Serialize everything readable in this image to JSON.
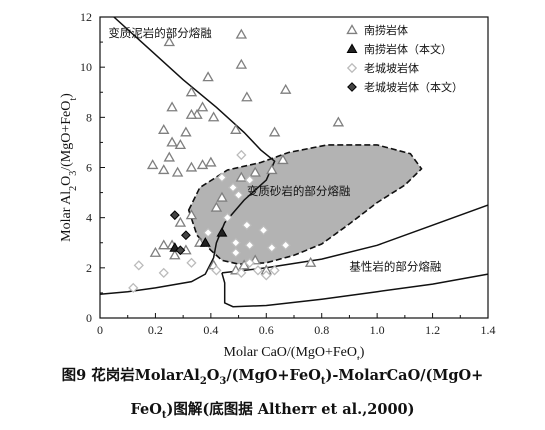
{
  "chart_data": {
    "type": "scatter",
    "xlabel": "Molar CaO/(MgO+FeO_t)",
    "ylabel": "Molar Al_2O_3/(MgO+FeO_t)",
    "xlim": [
      0,
      1.4
    ],
    "ylim": [
      0,
      12
    ],
    "x_ticks": [
      "0",
      "0.2",
      "0.4",
      "0.6",
      "0.8",
      "1.0",
      "1.2",
      "1.4"
    ],
    "y_ticks": [
      "0",
      "2",
      "4",
      "6",
      "8",
      "10",
      "12"
    ],
    "grid": false,
    "legend_position": "top-right",
    "series": [
      {
        "name": "南捞岩体",
        "marker": "triangle-open",
        "color": "#7f7f7f",
        "points": [
          [
            0.25,
            11.0
          ],
          [
            0.51,
            11.3
          ],
          [
            0.51,
            10.1
          ],
          [
            0.39,
            9.6
          ],
          [
            0.33,
            9.0
          ],
          [
            0.67,
            9.1
          ],
          [
            0.53,
            8.8
          ],
          [
            0.26,
            8.4
          ],
          [
            0.37,
            8.4
          ],
          [
            0.35,
            8.1
          ],
          [
            0.33,
            8.1
          ],
          [
            0.41,
            8.0
          ],
          [
            0.23,
            7.5
          ],
          [
            0.31,
            7.4
          ],
          [
            0.49,
            7.5
          ],
          [
            0.63,
            7.4
          ],
          [
            0.86,
            7.8
          ],
          [
            0.26,
            7.0
          ],
          [
            0.29,
            6.9
          ],
          [
            0.25,
            6.4
          ],
          [
            0.19,
            6.1
          ],
          [
            0.37,
            6.1
          ],
          [
            0.4,
            6.2
          ],
          [
            0.33,
            6.0
          ],
          [
            0.28,
            5.8
          ],
          [
            0.23,
            5.9
          ],
          [
            0.66,
            6.3
          ],
          [
            0.62,
            5.9
          ],
          [
            0.51,
            5.6
          ],
          [
            0.56,
            5.8
          ],
          [
            0.44,
            4.8
          ],
          [
            0.42,
            4.4
          ],
          [
            0.33,
            4.1
          ],
          [
            0.29,
            3.8
          ],
          [
            0.36,
            3.0
          ],
          [
            0.31,
            2.7
          ],
          [
            0.26,
            2.9
          ],
          [
            0.23,
            2.9
          ],
          [
            0.2,
            2.6
          ],
          [
            0.27,
            2.5
          ],
          [
            0.41,
            2.1
          ],
          [
            0.49,
            1.9
          ],
          [
            0.52,
            2.1
          ],
          [
            0.56,
            2.3
          ],
          [
            0.6,
            1.9
          ],
          [
            0.76,
            2.2
          ]
        ]
      },
      {
        "name": "南捞岩体（本文）",
        "marker": "triangle-dark",
        "color": "#222222",
        "points": [
          [
            0.27,
            2.8
          ],
          [
            0.38,
            3.0
          ],
          [
            0.44,
            3.4
          ]
        ]
      },
      {
        "name": "老城坡岩体",
        "marker": "diamond-open",
        "color": "#bbbbbb",
        "points": [
          [
            0.51,
            6.5
          ],
          [
            0.44,
            5.6
          ],
          [
            0.48,
            5.2
          ],
          [
            0.5,
            4.9
          ],
          [
            0.54,
            5.5
          ],
          [
            0.46,
            4.0
          ],
          [
            0.53,
            3.7
          ],
          [
            0.59,
            3.5
          ],
          [
            0.49,
            3.0
          ],
          [
            0.54,
            2.9
          ],
          [
            0.62,
            2.8
          ],
          [
            0.67,
            2.9
          ],
          [
            0.49,
            2.6
          ],
          [
            0.54,
            2.2
          ],
          [
            0.57,
            1.9
          ],
          [
            0.63,
            1.9
          ],
          [
            0.6,
            1.7
          ],
          [
            0.51,
            1.8
          ],
          [
            0.42,
            1.9
          ],
          [
            0.33,
            2.2
          ],
          [
            0.23,
            1.8
          ],
          [
            0.14,
            2.1
          ],
          [
            0.12,
            1.2
          ],
          [
            0.39,
            3.4
          ]
        ]
      },
      {
        "name": "老城坡岩体（本文）",
        "marker": "diamond-dark",
        "color": "#444444",
        "points": [
          [
            0.27,
            4.1
          ],
          [
            0.31,
            3.3
          ],
          [
            0.29,
            2.7
          ]
        ]
      }
    ],
    "fields": [
      {
        "name": "变质泥岩的部分熔融",
        "style": "solid",
        "polyline": [
          [
            0.05,
            12.0
          ],
          [
            0.18,
            10.7
          ],
          [
            0.3,
            9.5
          ],
          [
            0.42,
            8.4
          ],
          [
            0.52,
            7.4
          ],
          [
            0.58,
            6.7
          ],
          [
            0.63,
            6.25
          ],
          [
            0.6,
            5.5
          ],
          [
            0.52,
            4.7
          ],
          [
            0.45,
            3.8
          ],
          [
            0.42,
            3.0
          ],
          [
            0.41,
            2.4
          ],
          [
            0.38,
            1.75
          ],
          [
            0.33,
            1.45
          ],
          [
            0.2,
            1.2
          ],
          [
            0.1,
            1.05
          ],
          [
            0.0,
            0.95
          ]
        ]
      },
      {
        "name": "变质砂岩的部分熔融",
        "style": "dashed-filled",
        "fill": "#b3b3b3",
        "polyline": [
          [
            0.32,
            4.3
          ],
          [
            0.36,
            5.2
          ],
          [
            0.46,
            5.9
          ],
          [
            0.58,
            6.2
          ],
          [
            0.68,
            6.6
          ],
          [
            0.82,
            6.9
          ],
          [
            1.0,
            6.9
          ],
          [
            1.12,
            6.55
          ],
          [
            1.16,
            5.95
          ],
          [
            1.1,
            5.3
          ],
          [
            1.0,
            4.6
          ],
          [
            0.9,
            3.75
          ],
          [
            0.8,
            2.95
          ],
          [
            0.7,
            2.5
          ],
          [
            0.6,
            2.2
          ],
          [
            0.5,
            2.15
          ],
          [
            0.44,
            2.3
          ],
          [
            0.4,
            2.7
          ],
          [
            0.35,
            3.3
          ],
          [
            0.32,
            4.3
          ]
        ]
      },
      {
        "name": "基性岩的部分熔融",
        "style": "solid",
        "polyline_upper": [
          [
            0.44,
            1.8
          ],
          [
            0.6,
            2.0
          ],
          [
            0.8,
            2.35
          ],
          [
            1.0,
            2.9
          ],
          [
            1.2,
            3.7
          ],
          [
            1.4,
            4.5
          ]
        ],
        "polyline_lower": [
          [
            0.44,
            1.8
          ],
          [
            0.45,
            1.4
          ],
          [
            0.45,
            0.6
          ],
          [
            0.48,
            0.45
          ],
          [
            0.6,
            0.5
          ],
          [
            0.8,
            0.75
          ],
          [
            1.0,
            1.05
          ],
          [
            1.2,
            1.35
          ],
          [
            1.4,
            1.75
          ]
        ]
      }
    ]
  },
  "caption": {
    "line1_prefix": "图9 花岗岩MolarAl",
    "line1_sub1": "2",
    "line1_mid1": "O",
    "line1_sub2": "3",
    "line1_mid2": "/(MgO+FeO",
    "line1_sub3": "t",
    "line1_suffix": ")-MolarCaO/(MgO+",
    "line2_prefix": "FeO",
    "line2_sub": "t",
    "line2_suffix": ")图解(底图据 Altherr et al.,2000)"
  }
}
